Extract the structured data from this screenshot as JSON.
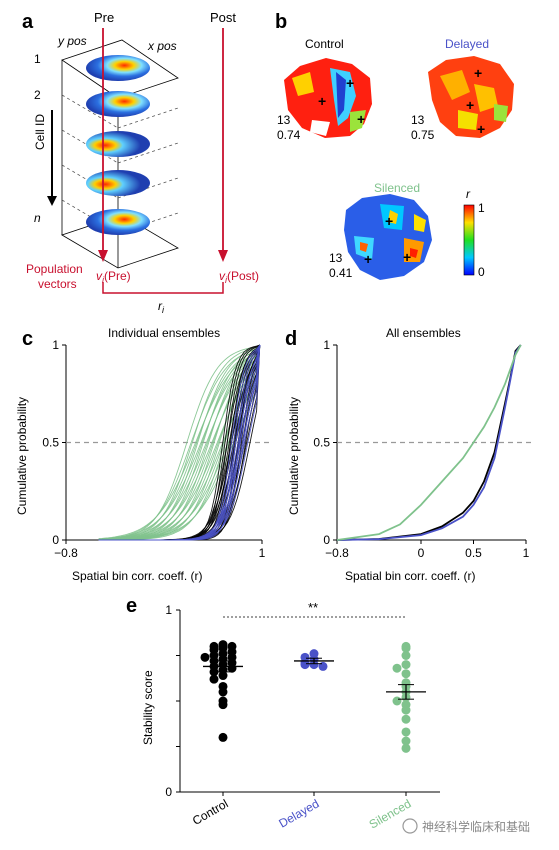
{
  "panels": {
    "a": {
      "letter": "a",
      "pre": "Pre",
      "post": "Post",
      "y_pos": "y pos",
      "x_pos": "x pos",
      "cell_id": "Cell ID",
      "row_labels": [
        "1",
        "2",
        "n"
      ],
      "population": "Population",
      "vectors": "vectors",
      "v_pre": "v",
      "v_pre_sub": "i",
      "v_pre_tail": "(Pre)",
      "v_post": "v",
      "v_post_sub": "i",
      "v_post_tail": "(Post)",
      "r_label": "r",
      "r_sub": "i"
    },
    "b": {
      "letter": "b",
      "maps": [
        {
          "title": "Control",
          "title_color": "#000000",
          "cell": "13",
          "value": "0.74"
        },
        {
          "title": "Delayed",
          "title_color": "#4a52c8",
          "cell": "13",
          "value": "0.75"
        },
        {
          "title": "Silenced",
          "title_color": "#7fc28c",
          "cell": "13",
          "value": "0.41"
        }
      ],
      "colorbar": {
        "label": "r",
        "max": "1",
        "min": "0"
      }
    },
    "c": {
      "letter": "c",
      "title": "Individual ensembles",
      "ylabel": "Cumulative probability",
      "xlabel": "Spatial bin corr. coeff. (r)",
      "xticks": [
        "−0.8",
        "1"
      ],
      "yticks": [
        "0",
        "0.5",
        "1"
      ]
    },
    "d": {
      "letter": "d",
      "title": "All ensembles",
      "ylabel": "Cumulative probability",
      "xlabel": "Spatial bin corr. coeff. (r)",
      "xticks": [
        "−0.8",
        "0",
        "0.5",
        "1"
      ],
      "yticks": [
        "0",
        "0.5",
        "1"
      ]
    },
    "e": {
      "letter": "e",
      "ylabel": "Stability score",
      "yticks": [
        "0",
        "1"
      ],
      "significance": "**",
      "groups": [
        "Control",
        "Delayed",
        "Silenced"
      ]
    }
  },
  "colors": {
    "control": "#000000",
    "delayed": "#4a52c8",
    "silenced": "#7fc28c",
    "accent_red": "#c8102e"
  },
  "chart_data": [
    {
      "type": "line",
      "panel": "c",
      "title": "Individual ensembles",
      "xlabel": "Spatial bin corr. coeff. (r)",
      "ylabel": "Cumulative probability",
      "xlim": [
        -0.8,
        1
      ],
      "ylim": [
        0,
        1
      ],
      "reference_line_y": 0.5,
      "series": [
        {
          "name": "Control",
          "color": "#000000",
          "median_r": [
            0.72,
            0.75,
            0.78,
            0.8,
            0.82,
            0.68,
            0.85,
            0.7
          ]
        },
        {
          "name": "Delayed",
          "color": "#4a52c8",
          "median_r": [
            0.76,
            0.8,
            0.83,
            0.78
          ]
        },
        {
          "name": "Silenced",
          "color": "#7fc28c",
          "median_r": [
            0.35,
            0.45,
            0.55,
            0.6,
            0.65,
            0.5,
            0.7,
            0.4
          ]
        }
      ]
    },
    {
      "type": "line",
      "panel": "d",
      "title": "All ensembles",
      "xlabel": "Spatial bin corr. coeff. (r)",
      "ylabel": "Cumulative probability",
      "xlim": [
        -0.8,
        1
      ],
      "ylim": [
        0,
        1
      ],
      "reference_line_y": 0.5,
      "series": [
        {
          "name": "Control",
          "color": "#000000",
          "x": [
            -0.8,
            -0.4,
            0,
            0.2,
            0.4,
            0.5,
            0.6,
            0.7,
            0.8,
            0.85,
            0.9,
            0.95
          ],
          "y": [
            0,
            0.005,
            0.03,
            0.07,
            0.14,
            0.2,
            0.3,
            0.45,
            0.7,
            0.83,
            0.97,
            1
          ]
        },
        {
          "name": "Delayed",
          "color": "#4a52c8",
          "x": [
            -0.8,
            -0.4,
            0,
            0.2,
            0.4,
            0.5,
            0.6,
            0.7,
            0.8,
            0.85,
            0.9,
            0.95
          ],
          "y": [
            0,
            0.004,
            0.025,
            0.06,
            0.12,
            0.18,
            0.27,
            0.42,
            0.68,
            0.82,
            0.96,
            1
          ]
        },
        {
          "name": "Silenced",
          "color": "#7fc28c",
          "x": [
            -0.8,
            -0.4,
            -0.2,
            0,
            0.2,
            0.4,
            0.5,
            0.6,
            0.7,
            0.8,
            0.9,
            0.95
          ],
          "y": [
            0,
            0.03,
            0.08,
            0.18,
            0.3,
            0.42,
            0.5,
            0.58,
            0.68,
            0.8,
            0.95,
            1
          ]
        }
      ]
    },
    {
      "type": "scatter",
      "panel": "e",
      "ylabel": "Stability score",
      "ylim": [
        0,
        1
      ],
      "categories": [
        "Control",
        "Delayed",
        "Silenced"
      ],
      "series": [
        {
          "name": "Control",
          "color": "#000000",
          "mean": 0.69,
          "sem": 0.03,
          "values": [
            0.8,
            0.81,
            0.79,
            0.8,
            0.78,
            0.77,
            0.76,
            0.75,
            0.74,
            0.74,
            0.73,
            0.72,
            0.71,
            0.7,
            0.69,
            0.68,
            0.67,
            0.66,
            0.64,
            0.62,
            0.58,
            0.55,
            0.5,
            0.48,
            0.3
          ]
        },
        {
          "name": "Delayed",
          "color": "#4a52c8",
          "mean": 0.72,
          "sem": 0.015,
          "values": [
            0.76,
            0.74,
            0.73,
            0.71,
            0.7,
            0.7,
            0.69
          ]
        },
        {
          "name": "Silenced",
          "color": "#7fc28c",
          "mean": 0.55,
          "sem": 0.04,
          "values": [
            0.8,
            0.79,
            0.75,
            0.7,
            0.68,
            0.65,
            0.6,
            0.58,
            0.55,
            0.52,
            0.5,
            0.48,
            0.45,
            0.4,
            0.33,
            0.28,
            0.24
          ]
        }
      ]
    }
  ],
  "watermark": "神经科学临床和基础"
}
